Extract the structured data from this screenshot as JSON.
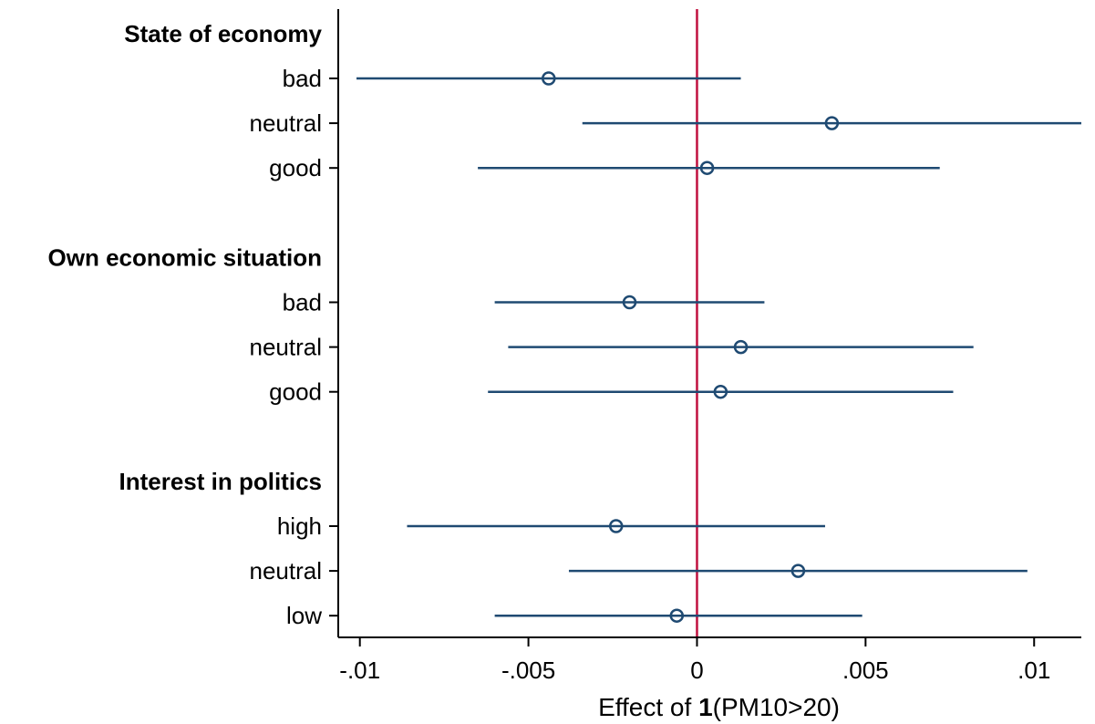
{
  "chart_data": {
    "type": "coefficient-plot",
    "title": "",
    "xlabel": {
      "prefix": "Effect of ",
      "bold": "1",
      "suffix": "(PM10>20)"
    },
    "ylabel": "",
    "xlim": [
      -0.0101,
      0.0114
    ],
    "xticks": [
      {
        "value": -0.01,
        "label": "-.01"
      },
      {
        "value": -0.005,
        "label": "-.005"
      },
      {
        "value": 0,
        "label": "0"
      },
      {
        "value": 0.005,
        "label": ".005"
      },
      {
        "value": 0.01,
        "label": ".01"
      }
    ],
    "reference_line": {
      "x": 0,
      "color": "#c0103f"
    },
    "colors": {
      "series": "#1f4a72",
      "reference": "#c0103f",
      "axis": "#000000"
    },
    "marker": "hollow-circle",
    "grid": false,
    "groups": [
      {
        "label": "State of economy",
        "items": [
          {
            "label": "bad",
            "estimate": -0.0044,
            "lower": -0.0101,
            "upper": 0.0013
          },
          {
            "label": "neutral",
            "estimate": 0.004,
            "lower": -0.0034,
            "upper": 0.0114
          },
          {
            "label": "good",
            "estimate": 0.0003,
            "lower": -0.0065,
            "upper": 0.0072
          }
        ]
      },
      {
        "label": "Own economic situation",
        "items": [
          {
            "label": "bad",
            "estimate": -0.002,
            "lower": -0.006,
            "upper": 0.002
          },
          {
            "label": "neutral",
            "estimate": 0.0013,
            "lower": -0.0056,
            "upper": 0.0082
          },
          {
            "label": "good",
            "estimate": 0.0007,
            "lower": -0.0062,
            "upper": 0.0076
          }
        ]
      },
      {
        "label": "Interest in politics",
        "items": [
          {
            "label": "high",
            "estimate": -0.0024,
            "lower": -0.0086,
            "upper": 0.0038
          },
          {
            "label": "neutral",
            "estimate": 0.003,
            "lower": -0.0038,
            "upper": 0.0098
          },
          {
            "label": "low",
            "estimate": -0.0006,
            "lower": -0.006,
            "upper": 0.0049
          }
        ]
      }
    ]
  }
}
